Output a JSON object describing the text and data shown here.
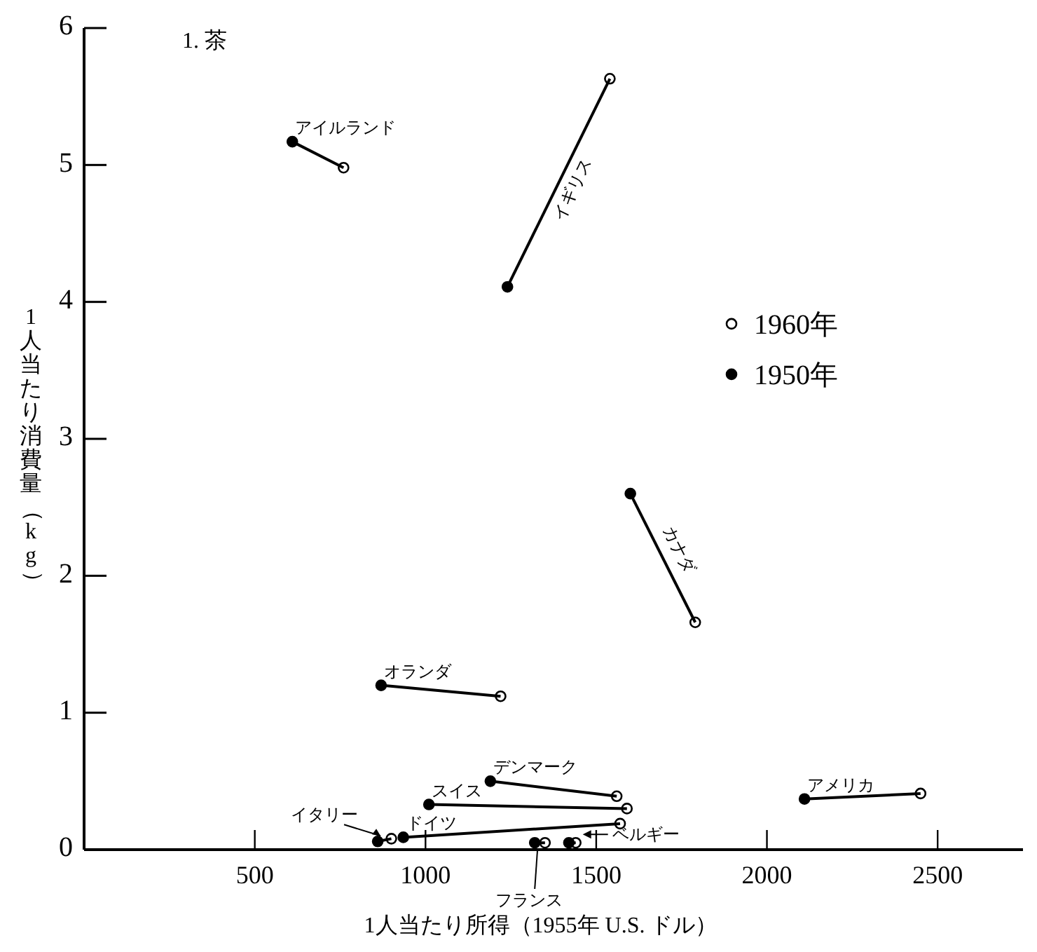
{
  "chart_data": {
    "type": "scatter",
    "title": "1. 茶",
    "xlabel": "1人当たり所得（1955年 U.S. ドル）",
    "ylabel": "1人当たり消費量（kg）",
    "xlim": [
      0,
      2750
    ],
    "ylim": [
      0,
      6
    ],
    "xticks": [
      500,
      1000,
      1500,
      2000,
      2500
    ],
    "yticks": [
      0,
      1,
      2,
      3,
      4,
      5,
      6
    ],
    "legend": "right",
    "series": [
      {
        "type": "line",
        "name": "アイルランド",
        "color": "#000000",
        "marker": "none",
        "x": [
          610,
          760
        ],
        "values": [
          5.17,
          4.98
        ]
      },
      {
        "type": "line",
        "name": "イギリス",
        "color": "#000000",
        "marker": "none",
        "x": [
          1240,
          1540
        ],
        "values": [
          4.11,
          5.63
        ]
      },
      {
        "type": "line",
        "name": "カナダ",
        "color": "#000000",
        "marker": "none",
        "x": [
          1600,
          1790
        ],
        "values": [
          2.6,
          1.66
        ]
      },
      {
        "type": "line",
        "name": "オランダ",
        "color": "#000000",
        "marker": "none",
        "x": [
          870,
          1220
        ],
        "values": [
          1.2,
          1.12
        ]
      },
      {
        "type": "line",
        "name": "デンマーク",
        "color": "#000000",
        "marker": "none",
        "x": [
          1190,
          1560
        ],
        "values": [
          0.5,
          0.39
        ]
      },
      {
        "type": "line",
        "name": "スイス",
        "color": "#000000",
        "marker": "none",
        "x": [
          1010,
          1590
        ],
        "values": [
          0.33,
          0.3
        ]
      },
      {
        "type": "line",
        "name": "ドイツ",
        "color": "#000000",
        "marker": "none",
        "x": [
          935,
          1570
        ],
        "values": [
          0.09,
          0.19
        ]
      },
      {
        "type": "line",
        "name": "イタリー",
        "color": "#000000",
        "marker": "none",
        "x": [
          860,
          900
        ],
        "values": [
          0.06,
          0.08
        ]
      },
      {
        "type": "line",
        "name": "フランス",
        "color": "#000000",
        "marker": "none",
        "x": [
          1320,
          1350
        ],
        "values": [
          0.05,
          0.05
        ]
      },
      {
        "type": "line",
        "name": "ベルギー",
        "color": "#000000",
        "marker": "none",
        "x": [
          1420,
          1440
        ],
        "values": [
          0.05,
          0.05
        ]
      },
      {
        "type": "line",
        "name": "アメリカ",
        "color": "#000000",
        "marker": "none",
        "x": [
          2110,
          2450
        ],
        "values": [
          0.37,
          0.41
        ]
      },
      {
        "name": "1960年",
        "color": "#ffffff",
        "marker": "circle",
        "x": [
          760,
          1540,
          1790,
          1220,
          1560,
          1590,
          1570,
          900,
          1350,
          1440,
          2450
        ],
        "values": [
          4.98,
          5.63,
          1.66,
          1.12,
          0.39,
          0.3,
          0.19,
          0.08,
          0.05,
          0.05,
          0.41
        ]
      },
      {
        "name": "1950年",
        "color": "#000000",
        "marker": "circle",
        "x": [
          610,
          1240,
          1600,
          870,
          1190,
          1010,
          935,
          860,
          1320,
          1420,
          2110
        ],
        "values": [
          5.17,
          4.11,
          2.6,
          1.2,
          0.5,
          0.33,
          0.09,
          0.06,
          0.05,
          0.05,
          0.37
        ]
      }
    ]
  }
}
